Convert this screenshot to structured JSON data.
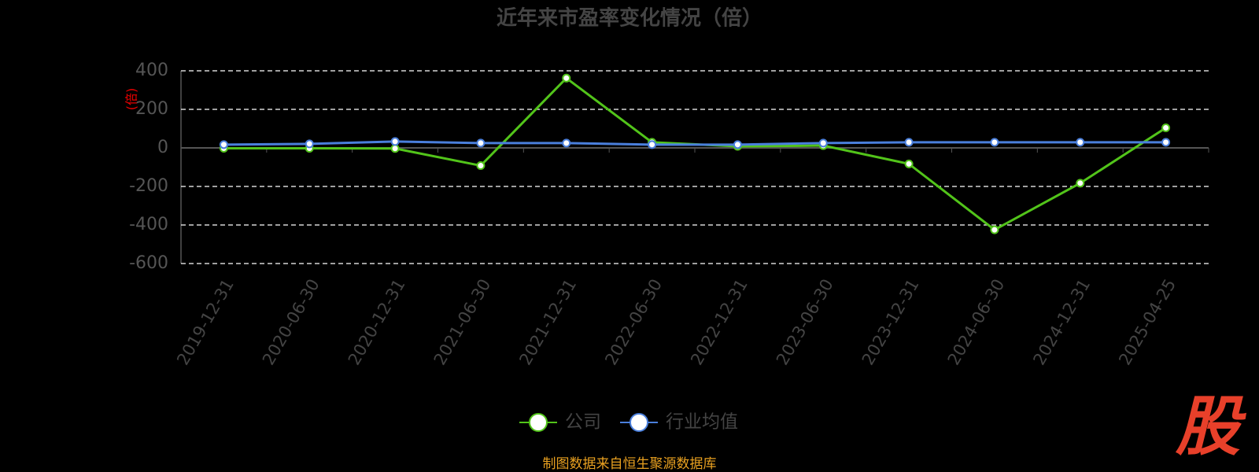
{
  "chart_data": {
    "type": "line",
    "title": "近年来市盈率变化情况（倍）",
    "y_label": "(倍)",
    "categories": [
      "2019-12-31",
      "2020-06-30",
      "2020-12-31",
      "2021-06-30",
      "2021-12-31",
      "2022-06-30",
      "2022-12-31",
      "2023-06-30",
      "2023-12-31",
      "2024-06-30",
      "2024-12-31",
      "2025-04-25"
    ],
    "series": [
      {
        "name": "公司",
        "color": "#52c41a",
        "values": [
          -2,
          -2,
          -3,
          -92,
          362,
          29,
          8,
          12,
          -83,
          -425,
          -183,
          104
        ]
      },
      {
        "name": "行业均值",
        "color": "#4a7fdc",
        "values": [
          17,
          21,
          33,
          25,
          25,
          17,
          17,
          25,
          29,
          29,
          29,
          29
        ]
      }
    ],
    "ylim": [
      -600,
      400
    ],
    "yticks": [
      -600,
      -400,
      -200,
      0,
      200,
      400
    ],
    "grid": true,
    "legend": "bottom",
    "source": "制图数据来自恒生聚源数据库",
    "watermark": "股"
  }
}
